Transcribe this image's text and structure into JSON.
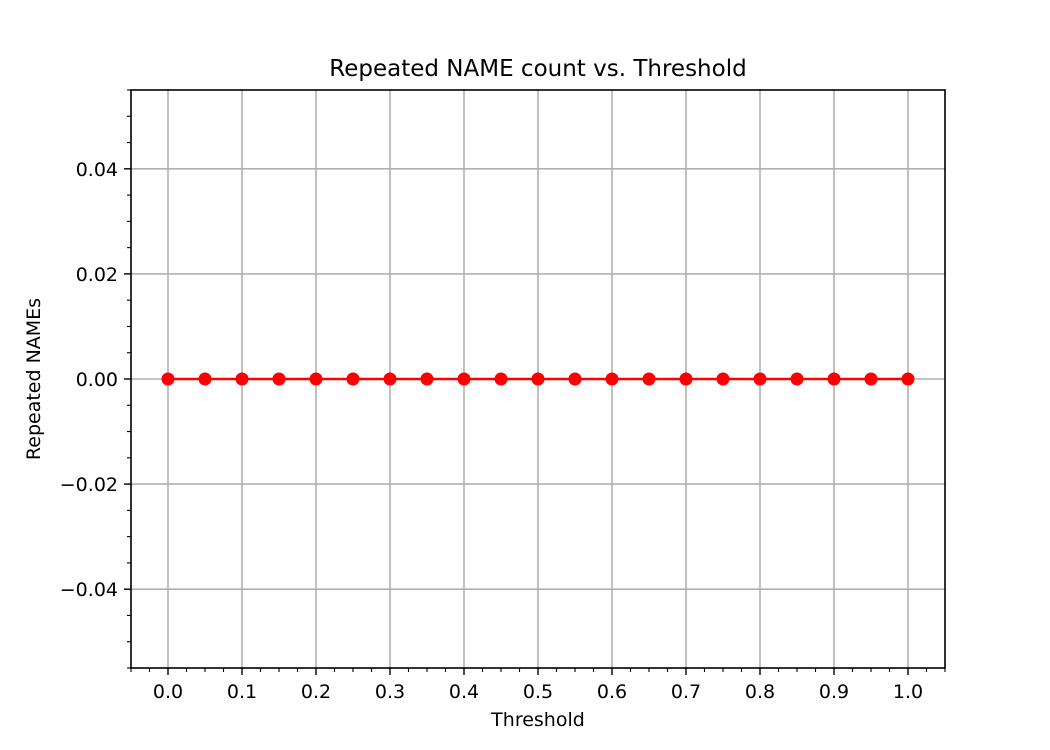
{
  "chart_data": {
    "type": "line",
    "title": "Repeated NAME count vs. Threshold",
    "xlabel": "Threshold",
    "ylabel": "Repeated NAMEs",
    "x": [
      0.0,
      0.05,
      0.1,
      0.15,
      0.2,
      0.25,
      0.3,
      0.35,
      0.4,
      0.45,
      0.5,
      0.55,
      0.6,
      0.65,
      0.7,
      0.75,
      0.8,
      0.85,
      0.9,
      0.95,
      1.0
    ],
    "series": [
      {
        "values": [
          0,
          0,
          0,
          0,
          0,
          0,
          0,
          0,
          0,
          0,
          0,
          0,
          0,
          0,
          0,
          0,
          0,
          0,
          0,
          0,
          0
        ],
        "color": "#ff0000",
        "marker": "circle"
      }
    ],
    "xlim": [
      -0.05,
      1.05
    ],
    "ylim": [
      -0.055,
      0.055
    ],
    "xticks": [
      0.0,
      0.1,
      0.2,
      0.3,
      0.4,
      0.5,
      0.6,
      0.7,
      0.8,
      0.9,
      1.0
    ],
    "xtick_labels": [
      "0.0",
      "0.1",
      "0.2",
      "0.3",
      "0.4",
      "0.5",
      "0.6",
      "0.7",
      "0.8",
      "0.9",
      "1.0"
    ],
    "yticks": [
      -0.04,
      -0.02,
      0.0,
      0.02,
      0.04
    ],
    "ytick_labels": [
      "−0.04",
      "−0.02",
      "0.00",
      "0.02",
      "0.04"
    ],
    "grid": true,
    "grid_color": "#b0b0b0",
    "minor_ticks": true
  }
}
